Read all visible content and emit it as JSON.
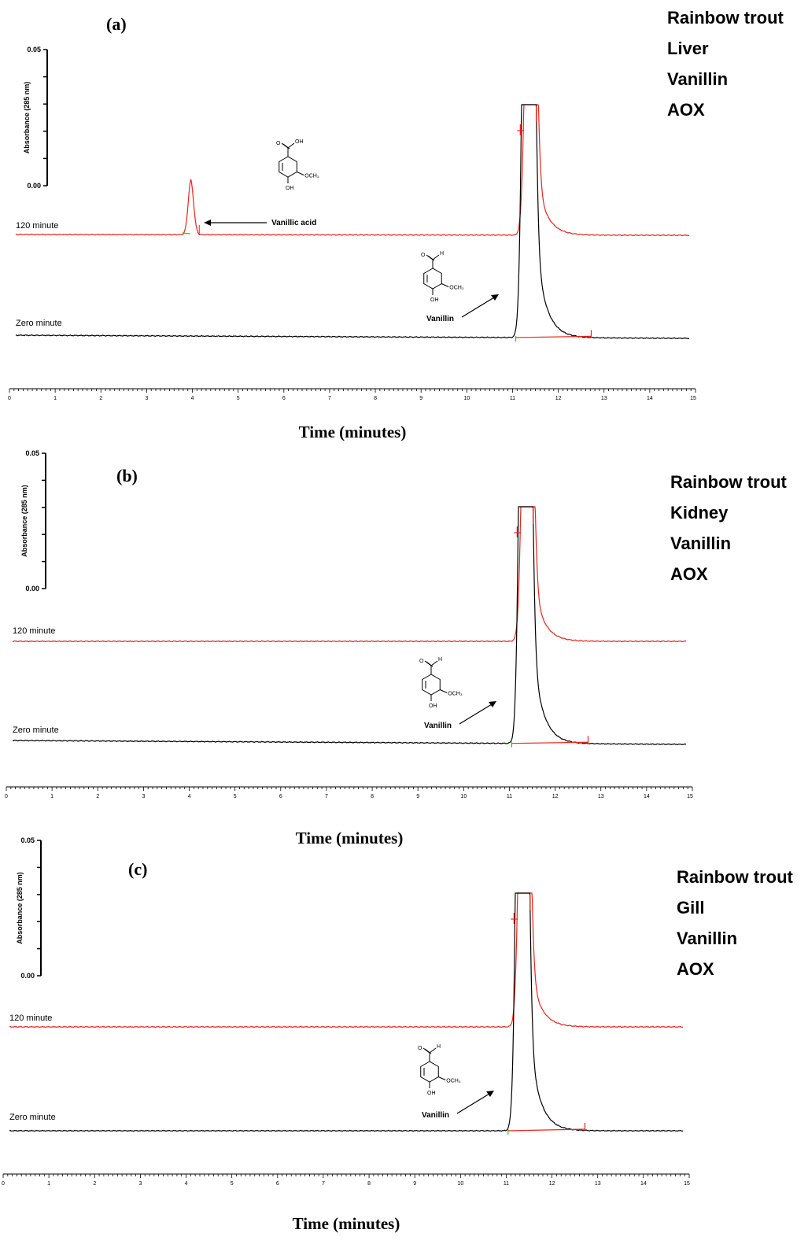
{
  "chart_data": [
    {
      "type": "line",
      "panel_label": "(a)",
      "info_lines": [
        "Rainbow trout",
        "Liver",
        "Vanillin",
        "AOX"
      ],
      "xlabel": "Time (minutes)",
      "ylabel": "Absorbance (285 nm)",
      "xlim": [
        0,
        15
      ],
      "x_ticks": [
        "0",
        "1",
        "2",
        "3",
        "4",
        "5",
        "6",
        "7",
        "8",
        "9",
        "10",
        "11",
        "12",
        "13",
        "14",
        "15"
      ],
      "y_ticks": [
        "0.05",
        "0.00"
      ],
      "series": [
        {
          "name": "120 minute",
          "color": "#e8241c",
          "peaks": [
            {
              "x": 3.97,
              "height": 0.029,
              "width": 0.06,
              "tail": 0.05
            },
            {
              "x": 11.4,
              "height": 0.3,
              "width": 0.09,
              "tail": 0.22
            }
          ]
        },
        {
          "name": "Zero minute",
          "color": "#000000",
          "peaks": [
            {
              "x": 11.35,
              "height": 0.55,
              "width": 0.09,
              "tail": 0.22
            }
          ]
        }
      ],
      "annotations": [
        {
          "label": "Vanillic acid",
          "target": "120 minute",
          "x": 3.97
        },
        {
          "label": "Vanillin",
          "target": "Zero minute",
          "x": 11.3
        }
      ]
    },
    {
      "type": "line",
      "panel_label": "(b)",
      "info_lines": [
        "Rainbow trout",
        "Kidney",
        "Vanillin",
        "AOX"
      ],
      "xlabel": "Time (minutes)",
      "ylabel": "Absorbance (285 nm)",
      "xlim": [
        0,
        15
      ],
      "x_ticks": [
        "0",
        "1",
        "2",
        "3",
        "4",
        "5",
        "6",
        "7",
        "8",
        "9",
        "10",
        "11",
        "12",
        "13",
        "14",
        "15"
      ],
      "y_ticks": [
        "0.05",
        "0.00"
      ],
      "series": [
        {
          "name": "120 minute",
          "color": "#e8241c",
          "peaks": [
            {
              "x": 11.4,
              "height": 0.3,
              "width": 0.09,
              "tail": 0.22
            }
          ]
        },
        {
          "name": "Zero minute",
          "color": "#000000",
          "peaks": [
            {
              "x": 11.35,
              "height": 0.55,
              "width": 0.09,
              "tail": 0.22
            }
          ]
        }
      ],
      "annotations": [
        {
          "label": "Vanillin",
          "target": "Zero minute",
          "x": 11.3
        }
      ]
    },
    {
      "type": "line",
      "panel_label": "(c)",
      "info_lines": [
        "Rainbow trout",
        "Gill",
        "Vanillin",
        "AOX"
      ],
      "xlabel": "Time (minutes)",
      "ylabel": "Absorbance (285 nm)",
      "xlim": [
        0,
        15
      ],
      "x_ticks": [
        "0",
        "1",
        "2",
        "3",
        "4",
        "5",
        "6",
        "7",
        "8",
        "9",
        "10",
        "11",
        "12",
        "13",
        "14",
        "15"
      ],
      "y_ticks": [
        "0.05",
        "0.00"
      ],
      "series": [
        {
          "name": "120 minute",
          "color": "#e8241c",
          "peaks": [
            {
              "x": 11.4,
              "height": 0.3,
              "width": 0.09,
              "tail": 0.22
            }
          ]
        },
        {
          "name": "Zero minute",
          "color": "#000000",
          "peaks": [
            {
              "x": 11.35,
              "height": 0.55,
              "width": 0.09,
              "tail": 0.22
            }
          ]
        }
      ],
      "annotations": [
        {
          "label": "Vanillin",
          "target": "Zero minute",
          "x": 11.3
        }
      ]
    }
  ],
  "molecules": {
    "vanillic_acid": {
      "o_top": "O",
      "oh_top": "OH",
      "oh_bottom": "OH",
      "och3": "OCH₃"
    },
    "vanillin": {
      "o_top": "O",
      "h_top": "H",
      "oh_bottom": "OH",
      "och3": "OCH₃"
    }
  },
  "colors": {
    "red_trace": "#e8241c",
    "black_trace": "#000000",
    "integration_baseline": "#e8241c",
    "peak_start_marker": "#22c022"
  }
}
